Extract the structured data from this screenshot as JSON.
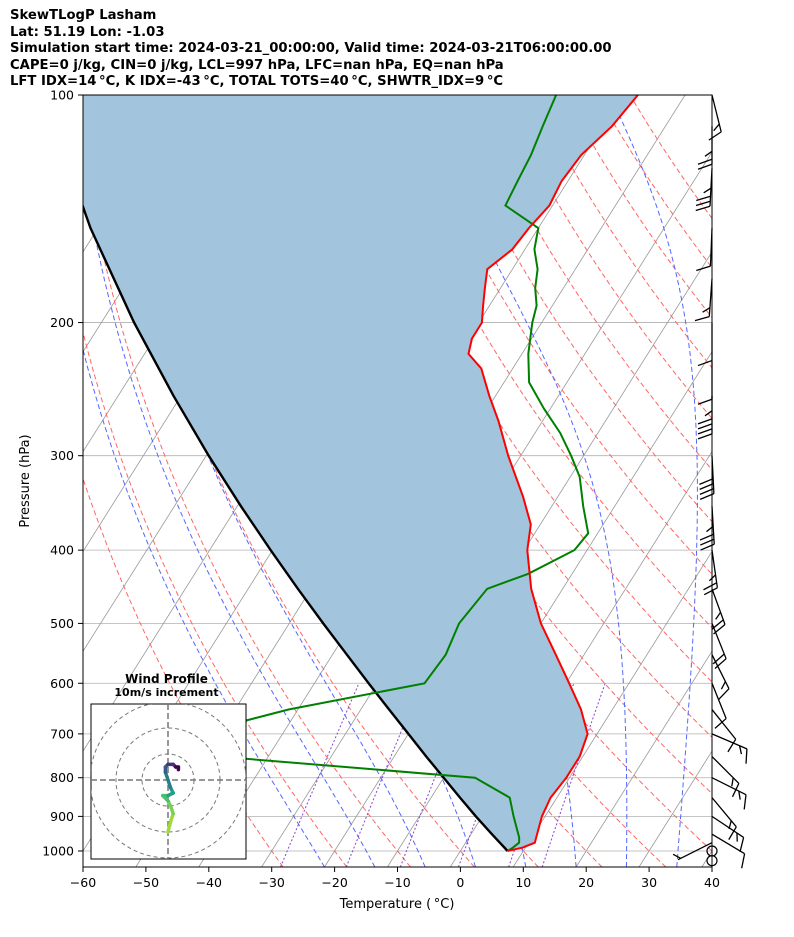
{
  "header": {
    "line1": "SkewTLogP Lasham",
    "line2": "Lat: 51.19   Lon: -1.03",
    "line3": "Simulation start time: 2024-03-21_00:00:00, Valid time: 2024-03-21T06:00:00.00",
    "line4": "CAPE=0 j/kg, CIN=0 j/kg, LCL=997 hPa, LFC=nan hPa, EQ=nan hPa",
    "line5": "LFT IDX=14 °C, K IDX=-43 °C, TOTAL TOTS=40 °C, SHWTR_IDX=9 °C"
  },
  "colors": {
    "temperature": "#ff0000",
    "dewpoint": "#008000",
    "parcel": "#000000",
    "shade": "#a3c4dd",
    "dry_adiabat": "#ff6666",
    "moist_adiabat": "#5566ff",
    "mixing_ratio": "#8844cc",
    "isotherm": "#999999"
  },
  "chart_data": {
    "type": "line",
    "title": "",
    "xlabel": "Temperature ( °C)",
    "ylabel": "Pressure (hPa)",
    "xlim": [
      -60,
      40
    ],
    "ylim": [
      1050,
      100
    ],
    "y_scale": "log",
    "x_ticks": [
      "−60",
      "−50",
      "−40",
      "−30",
      "−20",
      "−10",
      "0",
      "10",
      "20",
      "30",
      "40"
    ],
    "x_tick_values": [
      -60,
      -50,
      -40,
      -30,
      -20,
      -10,
      0,
      10,
      20,
      30,
      40
    ],
    "y_ticks": [
      "100",
      "200",
      "300",
      "400",
      "500",
      "600",
      "700",
      "800",
      "900",
      "1000"
    ],
    "y_tick_values": [
      100,
      200,
      300,
      400,
      500,
      600,
      700,
      800,
      900,
      1000
    ],
    "grid": true,
    "series": [
      {
        "role": "temperature",
        "points": [
          [
            1000,
            7.5
          ],
          [
            990,
            9.5
          ],
          [
            975,
            11.0
          ],
          [
            950,
            10.5
          ],
          [
            900,
            9.5
          ],
          [
            850,
            9.0
          ],
          [
            800,
            9.5
          ],
          [
            750,
            9.5
          ],
          [
            700,
            8.5
          ],
          [
            650,
            5.0
          ],
          [
            600,
            0.5
          ],
          [
            550,
            -4.5
          ],
          [
            500,
            -10.0
          ],
          [
            450,
            -15.0
          ],
          [
            400,
            -19.5
          ],
          [
            370,
            -21.5
          ],
          [
            340,
            -25.5
          ],
          [
            300,
            -32.0
          ],
          [
            270,
            -37.0
          ],
          [
            250,
            -41.0
          ],
          [
            230,
            -45.0
          ],
          [
            220,
            -48.5
          ],
          [
            210,
            -49.5
          ],
          [
            200,
            -49.5
          ],
          [
            190,
            -51.0
          ],
          [
            180,
            -52.5
          ],
          [
            170,
            -54.0
          ],
          [
            160,
            -52.0
          ],
          [
            150,
            -51.5
          ],
          [
            140,
            -50.5
          ],
          [
            130,
            -51.0
          ],
          [
            120,
            -50.5
          ],
          [
            110,
            -48.5
          ],
          [
            100,
            -47.5
          ]
        ]
      },
      {
        "role": "dewpoint",
        "points": [
          [
            1000,
            7.5
          ],
          [
            990,
            8.0
          ],
          [
            975,
            8.5
          ],
          [
            960,
            8.0
          ],
          [
            900,
            5.0
          ],
          [
            850,
            2.5
          ],
          [
            800,
            -5.0
          ],
          [
            750,
            -48.0
          ],
          [
            700,
            -54.0
          ],
          [
            650,
            -41.5
          ],
          [
            600,
            -22.5
          ],
          [
            550,
            -22.0
          ],
          [
            500,
            -23.0
          ],
          [
            450,
            -22.0
          ],
          [
            430,
            -17.0
          ],
          [
            400,
            -12.0
          ],
          [
            380,
            -11.5
          ],
          [
            350,
            -15.0
          ],
          [
            320,
            -18.5
          ],
          [
            300,
            -22.0
          ],
          [
            280,
            -26.0
          ],
          [
            260,
            -31.0
          ],
          [
            240,
            -36.0
          ],
          [
            220,
            -39.0
          ],
          [
            200,
            -41.5
          ],
          [
            190,
            -42.5
          ],
          [
            180,
            -44.5
          ],
          [
            170,
            -46.0
          ],
          [
            160,
            -48.5
          ],
          [
            150,
            -50.0
          ],
          [
            140,
            -57.5
          ],
          [
            130,
            -58.0
          ],
          [
            120,
            -58.5
          ],
          [
            110,
            -59.5
          ],
          [
            100,
            -60.5
          ]
        ]
      },
      {
        "role": "parcel",
        "points": [
          [
            1000,
            7.5
          ],
          [
            950,
            3.3
          ],
          [
            900,
            -1.0
          ],
          [
            850,
            -5.4
          ],
          [
            800,
            -10.0
          ],
          [
            750,
            -14.9
          ],
          [
            700,
            -20.0
          ],
          [
            650,
            -25.5
          ],
          [
            600,
            -31.4
          ],
          [
            550,
            -37.7
          ],
          [
            500,
            -44.6
          ],
          [
            450,
            -52.1
          ],
          [
            400,
            -60.3
          ],
          [
            350,
            -69.4
          ],
          [
            300,
            -79.6
          ],
          [
            250,
            -91.2
          ],
          [
            200,
            -104.8
          ],
          [
            150,
            -121.2
          ],
          [
            100,
            -142.0
          ]
        ]
      }
    ],
    "wind_barbs": [
      {
        "p": 1030,
        "calm": true
      },
      {
        "p": 1000,
        "calm": true
      },
      {
        "p": 975,
        "u": 2,
        "v": 1
      },
      {
        "p": 950,
        "u": -5,
        "v": 3
      },
      {
        "p": 900,
        "u": -6,
        "v": 4
      },
      {
        "p": 850,
        "u": -5,
        "v": 6
      },
      {
        "p": 800,
        "u": -6,
        "v": 3
      },
      {
        "p": 750,
        "u": -5,
        "v": 5
      },
      {
        "p": 700,
        "u": -7,
        "v": 3
      },
      {
        "p": 650,
        "u": -4,
        "v": 5
      },
      {
        "p": 600,
        "u": -2,
        "v": 5
      },
      {
        "p": 550,
        "u": -4,
        "v": 8
      },
      {
        "p": 500,
        "u": -4,
        "v": 10
      },
      {
        "p": 450,
        "u": -4,
        "v": 11
      },
      {
        "p": 400,
        "u": -2,
        "v": 14
      },
      {
        "p": 350,
        "u": -1,
        "v": 17
      },
      {
        "p": 300,
        "u": -1,
        "v": 20
      },
      {
        "p": 250,
        "u": 0,
        "v": 24
      },
      {
        "p": 225,
        "u": 0,
        "v": 25
      },
      {
        "p": 200,
        "u": 0,
        "v": 26
      },
      {
        "p": 175,
        "u": 2,
        "v": 28
      },
      {
        "p": 150,
        "u": 1,
        "v": 25
      },
      {
        "p": 125,
        "u": 1,
        "v": 19
      },
      {
        "p": 110,
        "u": 0,
        "v": 14
      },
      {
        "p": 100,
        "u": -2,
        "v": 8
      }
    ],
    "hodograph": {
      "title": "Wind Profile",
      "subtitle": "10m/s increment",
      "rings": [
        10,
        20,
        30
      ],
      "points": [
        [
          0,
          -20
        ],
        [
          1,
          -16
        ],
        [
          2,
          -13
        ],
        [
          1,
          -10
        ],
        [
          0,
          -8
        ],
        [
          -2,
          -6
        ],
        [
          0,
          -6
        ],
        [
          2,
          -5
        ],
        [
          1,
          -3
        ],
        [
          0,
          0
        ],
        [
          -1,
          3
        ],
        [
          -1,
          5
        ],
        [
          0,
          6
        ],
        [
          2,
          6
        ],
        [
          3,
          5
        ],
        [
          4,
          5
        ],
        [
          4,
          4
        ]
      ]
    },
    "annotations": {
      "cape_text": "CAPE=0 j/kg, CIN=0 j/kg"
    }
  }
}
